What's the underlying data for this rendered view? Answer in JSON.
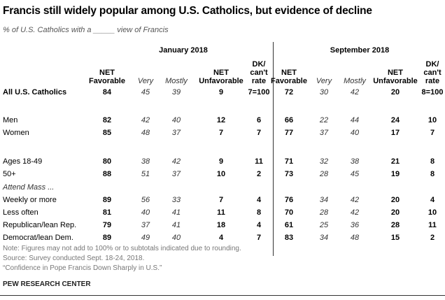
{
  "title": "Francis still widely popular among U.S. Catholics, but evidence of decline",
  "subtitle": "% of U.S. Catholics with a _____ view of Francis",
  "chart_data": {
    "type": "table",
    "periods": [
      "January 2018",
      "September 2018"
    ],
    "columns": [
      {
        "label": [
          "NET",
          "Favorable"
        ],
        "style": "bold"
      },
      {
        "label": [
          "Very"
        ],
        "style": "ital"
      },
      {
        "label": [
          "Mostly"
        ],
        "style": "ital"
      },
      {
        "label": [
          "NET",
          "Unfavorable"
        ],
        "style": "bold"
      },
      {
        "label": [
          "DK/",
          "can't",
          "rate"
        ],
        "style": "bold"
      }
    ],
    "section_label": "Attend Mass ...",
    "rows": [
      {
        "label": "All U.S. Catholics",
        "bold": true,
        "jan": [
          "84",
          "45",
          "39",
          "9",
          "7=100"
        ],
        "sep": [
          "72",
          "30",
          "42",
          "20",
          "8=100"
        ]
      },
      {
        "label": "Men",
        "jan": [
          "82",
          "42",
          "40",
          "12",
          "6"
        ],
        "sep": [
          "66",
          "22",
          "44",
          "24",
          "10"
        ]
      },
      {
        "label": "Women",
        "jan": [
          "85",
          "48",
          "37",
          "7",
          "7"
        ],
        "sep": [
          "77",
          "37",
          "40",
          "17",
          "7"
        ]
      },
      {
        "label": "Ages 18-49",
        "jan": [
          "80",
          "38",
          "42",
          "9",
          "11"
        ],
        "sep": [
          "71",
          "32",
          "38",
          "21",
          "8"
        ]
      },
      {
        "label": "50+",
        "jan": [
          "88",
          "51",
          "37",
          "10",
          "2"
        ],
        "sep": [
          "73",
          "28",
          "45",
          "19",
          "8"
        ]
      },
      {
        "label": "Weekly or more",
        "jan": [
          "89",
          "56",
          "33",
          "7",
          "4"
        ],
        "sep": [
          "76",
          "34",
          "42",
          "20",
          "4"
        ]
      },
      {
        "label": "Less often",
        "jan": [
          "81",
          "40",
          "41",
          "11",
          "8"
        ],
        "sep": [
          "70",
          "28",
          "42",
          "20",
          "10"
        ]
      },
      {
        "label": "Republican/lean Rep.",
        "jan": [
          "79",
          "37",
          "41",
          "18",
          "4"
        ],
        "sep": [
          "61",
          "25",
          "36",
          "28",
          "11"
        ]
      },
      {
        "label": "Democrat/lean Dem.",
        "jan": [
          "89",
          "49",
          "40",
          "4",
          "7"
        ],
        "sep": [
          "83",
          "34",
          "48",
          "15",
          "2"
        ]
      }
    ]
  },
  "notes": [
    "Note: Figures may not add to 100% or to subtotals indicated due to rounding.",
    "Source: Survey conducted Sept. 18-24, 2018.",
    "“Confidence in Pope Francis Down Sharply in U.S.”"
  ],
  "brand": "PEW RESEARCH CENTER"
}
